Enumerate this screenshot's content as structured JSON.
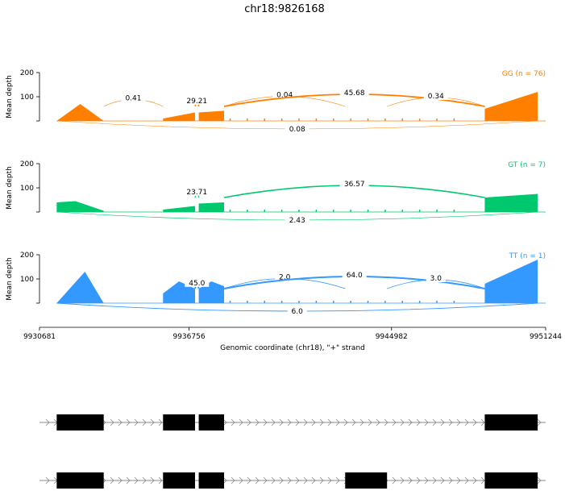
{
  "chart_data": {
    "type": "area",
    "title": "chr18:9826168",
    "xlabel": "Genomic coordinate (chr18), \"+\" strand",
    "xlim": [
      9930681,
      9951244
    ],
    "x_ticks": [
      "9930681",
      "9936756",
      "9944982",
      "9951244"
    ],
    "x_tick_values": [
      9930681,
      9936756,
      9944982,
      9951244
    ],
    "ylabel": "Mean depth",
    "ylim": [
      0,
      200
    ],
    "y_ticks": [
      "200",
      "100"
    ],
    "exons": [
      [
        9931380,
        9933290
      ],
      [
        9935700,
        9937000
      ],
      [
        9937150,
        9938180
      ],
      [
        9948770,
        9950920
      ]
    ],
    "transcript2_exons": [
      [
        9931380,
        9933290
      ],
      [
        9935700,
        9937000
      ],
      [
        9937150,
        9938180
      ],
      [
        9943100,
        9944800
      ],
      [
        9948770,
        9950920
      ]
    ],
    "series": [
      {
        "name": "GG (n = 76)",
        "color": "#ff8000",
        "peak": 120,
        "exon_levels": [
          [
            [
              0,
              0
            ],
            [
              0.5,
              70
            ],
            [
              1,
              0
            ]
          ],
          [
            [
              0,
              10
            ],
            [
              1,
              35
            ]
          ],
          [
            [
              0,
              35
            ],
            [
              1,
              42
            ]
          ],
          [
            [
              0,
              50
            ],
            [
              1,
              120
            ]
          ]
        ],
        "junctions": [
          {
            "from": 9933290,
            "to": 9935700,
            "label": "0.41",
            "side": "above",
            "width": 0.6
          },
          {
            "from": 9937000,
            "to": 9937150,
            "label": "29.21",
            "side": "above",
            "width": 1.5
          },
          {
            "from": 9938180,
            "to": 9943100,
            "label": "0.04",
            "side": "above",
            "width": 0.6
          },
          {
            "from": 9938180,
            "to": 9948770,
            "label": "45.68",
            "side": "above",
            "width": 1.8
          },
          {
            "from": 9944800,
            "to": 9948770,
            "label": "0.34",
            "side": "above",
            "width": 0.6
          },
          {
            "from": 9931380,
            "to": 9950920,
            "label": "0.08",
            "side": "below",
            "width": 0.5
          }
        ]
      },
      {
        "name": "GT (n = 7)",
        "color": "#00c86e",
        "peak": 75,
        "exon_levels": [
          [
            [
              0,
              40
            ],
            [
              0.4,
              45
            ],
            [
              1,
              5
            ]
          ],
          [
            [
              0,
              10
            ],
            [
              1,
              25
            ]
          ],
          [
            [
              0,
              35
            ],
            [
              1,
              40
            ]
          ],
          [
            [
              0,
              60
            ],
            [
              1,
              75
            ]
          ]
        ],
        "junctions": [
          {
            "from": 9937000,
            "to": 9937150,
            "label": "23.71",
            "side": "above",
            "width": 1.2
          },
          {
            "from": 9938180,
            "to": 9948770,
            "label": "36.57",
            "side": "above",
            "width": 1.6
          },
          {
            "from": 9931380,
            "to": 9950920,
            "label": "2.43",
            "side": "below",
            "width": 0.6
          }
        ]
      },
      {
        "name": "TT (n = 1)",
        "color": "#3399ff",
        "peak": 180,
        "exon_levels": [
          [
            [
              0,
              0
            ],
            [
              0.6,
              130
            ],
            [
              1,
              0
            ]
          ],
          [
            [
              0,
              40
            ],
            [
              0.5,
              90
            ],
            [
              1,
              60
            ]
          ],
          [
            [
              0,
              60
            ],
            [
              0.5,
              90
            ],
            [
              1,
              70
            ]
          ],
          [
            [
              0,
              80
            ],
            [
              1,
              180
            ]
          ]
        ],
        "junctions": [
          {
            "from": 9937000,
            "to": 9937150,
            "label": "45.0",
            "side": "above",
            "width": 1.8
          },
          {
            "from": 9938180,
            "to": 9943100,
            "label": "2.0",
            "side": "above",
            "width": 0.8
          },
          {
            "from": 9938180,
            "to": 9948770,
            "label": "64.0",
            "side": "above",
            "width": 2.0
          },
          {
            "from": 9944800,
            "to": 9948770,
            "label": "3.0",
            "side": "above",
            "width": 0.8
          },
          {
            "from": 9931380,
            "to": 9950920,
            "label": "6.0",
            "side": "below",
            "width": 0.9
          }
        ]
      }
    ]
  }
}
